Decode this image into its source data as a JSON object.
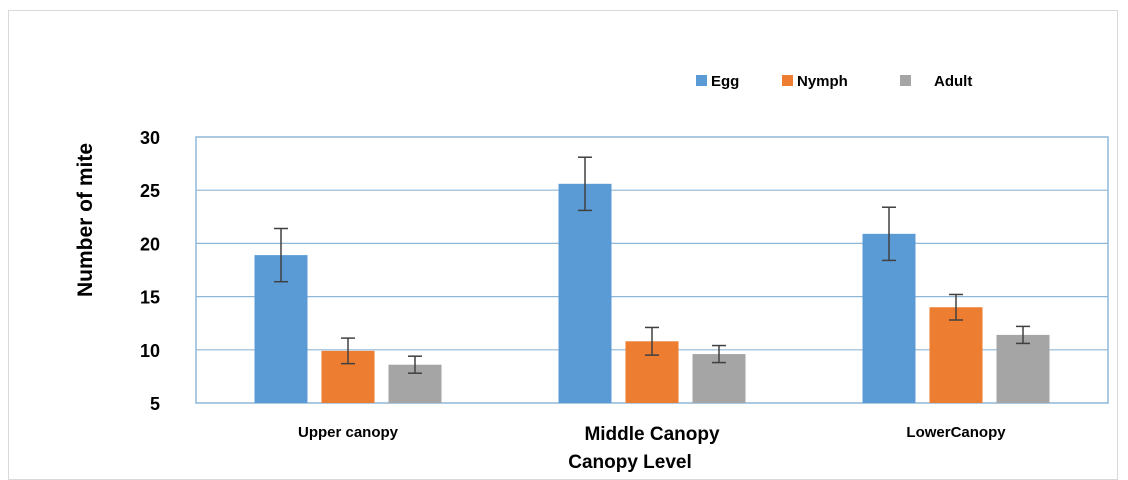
{
  "chart_data": {
    "type": "bar",
    "categories": [
      "Upper canopy",
      "Middle Canopy",
      "LowerCanopy"
    ],
    "series": [
      {
        "name": "Egg",
        "color": "#5b9bd5",
        "values": [
          18.9,
          25.6,
          20.9
        ],
        "errors": [
          2.5,
          2.5,
          2.5
        ]
      },
      {
        "name": "Nymph",
        "color": "#ed7d31",
        "values": [
          9.9,
          10.8,
          14.0
        ],
        "errors": [
          1.2,
          1.3,
          1.2
        ]
      },
      {
        "name": "Adult",
        "color": "#a5a5a5",
        "values": [
          8.6,
          9.6,
          11.4
        ],
        "errors": [
          0.8,
          0.8,
          0.8
        ]
      }
    ],
    "xlabel": "Canopy Level",
    "ylabel": "Number of mite",
    "ylim": [
      5,
      30
    ],
    "yticks": [
      "5",
      "10",
      "15",
      "20",
      "25",
      "30"
    ],
    "grid": true,
    "legend_position": "top-right",
    "error_bar_color": "#404040"
  }
}
